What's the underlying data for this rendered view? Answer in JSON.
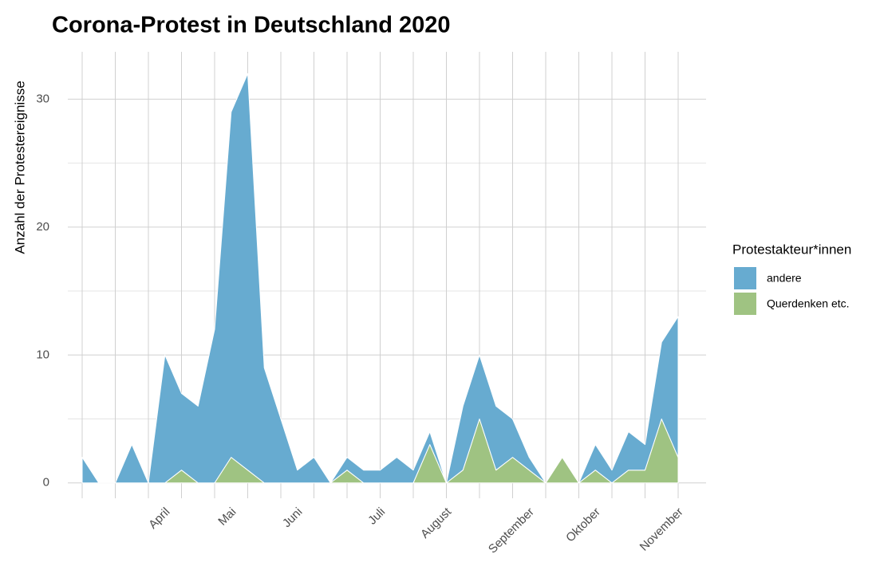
{
  "chart_data": {
    "type": "area",
    "stacked": true,
    "title": "Corona-Protest in Deutschland 2020",
    "y_label": "Anzahl der Protestereignisse",
    "legend_title": "Protestakteur*innen",
    "categories": [
      null,
      null,
      null,
      null,
      null,
      "April",
      null,
      null,
      null,
      "Mai",
      null,
      null,
      null,
      "Juni",
      null,
      null,
      null,
      null,
      "Juli",
      null,
      null,
      null,
      "August",
      null,
      null,
      null,
      null,
      "September",
      null,
      null,
      null,
      "Oktober",
      null,
      null,
      null,
      null,
      "November"
    ],
    "series": [
      {
        "name": "andere",
        "color": "#67abd0",
        "values": [
          2,
          0,
          0,
          3,
          0,
          10,
          6,
          6,
          12,
          27,
          31,
          9,
          5,
          1,
          2,
          0,
          1,
          1,
          1,
          2,
          1,
          1,
          0,
          5,
          5,
          5,
          3,
          1,
          0,
          0,
          0,
          2,
          1,
          3,
          2,
          6,
          11
        ]
      },
      {
        "name": "Querdenken etc.",
        "color": "#9fc382",
        "values": [
          0,
          0,
          0,
          0,
          0,
          0,
          1,
          0,
          0,
          2,
          1,
          0,
          0,
          0,
          0,
          0,
          1,
          0,
          0,
          0,
          0,
          3,
          0,
          1,
          5,
          1,
          2,
          1,
          0,
          2,
          0,
          1,
          0,
          1,
          1,
          5,
          2
        ]
      }
    ],
    "ylim": [
      -1.2,
      33.7
    ],
    "yticks": [
      0,
      10,
      20,
      30
    ],
    "grid": true
  }
}
